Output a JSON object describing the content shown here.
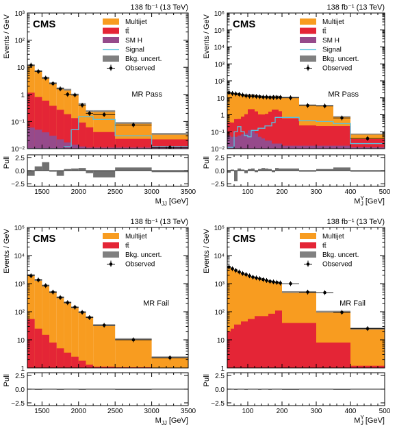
{
  "colors": {
    "multijet": "#f89c20",
    "ttbar": "#e42536",
    "smh": "#964a8b",
    "signal": "#5bc0de",
    "bkg_uncert": "#808080",
    "observed": "#000000"
  },
  "chart_data": [
    {
      "type": "histogram",
      "experiment": "CMS",
      "lumi": "138 fb⁻¹ (13 TeV)",
      "region": "MR Pass",
      "xlabel": "M_JJ [GeV]",
      "ylabel": "Events / GeV",
      "xlim": [
        1300,
        3500
      ],
      "ylim": [
        0.01,
        1000
      ],
      "yscale": "log",
      "xticks": [
        1500,
        2000,
        2500,
        3000,
        3500
      ],
      "yticks": [
        "10⁻²",
        "10⁻¹",
        "1",
        "10",
        "10²",
        "10³"
      ],
      "bins": [
        1300,
        1400,
        1500,
        1600,
        1700,
        1800,
        1900,
        2000,
        2100,
        2200,
        2500,
        3000,
        3500
      ],
      "legend": [
        "Multijet",
        "tt̄",
        "SM H",
        "Signal",
        "Bkg. uncert.",
        "Observed"
      ],
      "stack": {
        "smh": [
          0.06,
          0.05,
          0.04,
          0.03,
          0.022,
          0.017,
          0.014,
          0.012,
          0.011,
          0.011,
          0.011,
          0.011
        ],
        "ttbar": [
          1.1,
          0.75,
          0.55,
          0.35,
          0.25,
          0.17,
          0.12,
          0.08,
          0.05,
          0.03,
          0.012,
          0.011
        ],
        "multijet": [
          10.5,
          6.5,
          3.5,
          2.2,
          1.4,
          1.3,
          0.85,
          0.35,
          0.18,
          0.2,
          0.065,
          0.013
        ]
      },
      "signal": [
        0.001,
        0.001,
        0.001,
        0.001,
        0.001,
        0.012,
        0.05,
        0.15,
        0.15,
        0.12,
        0.03,
        0.012
      ],
      "observed": {
        "x": [
          1350,
          1450,
          1550,
          1650,
          1750,
          1850,
          1950,
          2050,
          2150,
          2350,
          2750,
          3250
        ],
        "y": [
          12,
          7,
          4,
          2.5,
          1.6,
          1.0,
          0.95,
          0.4,
          0.2,
          0.18,
          0.075,
          0.011
        ]
      },
      "pull": {
        "ylim": [
          -3,
          3
        ],
        "yticks": [
          "2.5",
          "0.0",
          "−2.5"
        ],
        "values": [
          -1.0,
          0.8,
          1.6,
          -0.2,
          -1.0,
          0.3,
          0.4,
          0.5,
          -0.5,
          -1.3,
          0.6,
          -0.3
        ]
      }
    },
    {
      "type": "histogram",
      "experiment": "CMS",
      "lumi": "138 fb⁻¹ (13 TeV)",
      "region": "MR Pass",
      "xlabel": "M_J^Y [GeV]",
      "ylabel": "Events / GeV",
      "xlim": [
        40,
        500
      ],
      "ylim": [
        0.01,
        1000000
      ],
      "yscale": "log",
      "xticks": [
        100,
        200,
        300,
        400,
        500
      ],
      "yticks": [
        "10⁻²",
        "10⁻¹",
        "1",
        "10",
        "10²",
        "10³",
        "10⁴",
        "10⁵",
        "10⁶"
      ],
      "bins": [
        40,
        50,
        60,
        70,
        80,
        90,
        100,
        110,
        120,
        130,
        140,
        150,
        160,
        170,
        180,
        190,
        200,
        250,
        300,
        350,
        400,
        500
      ],
      "legend": [
        "Multijet",
        "tt̄",
        "SM H",
        "Signal",
        "Bkg. uncert.",
        "Observed"
      ],
      "stack": {
        "smh": [
          0.06,
          0.05,
          0.05,
          0.06,
          0.07,
          0.08,
          0.12,
          0.13,
          0.08,
          0.05,
          0.04,
          0.03,
          0.03,
          0.02,
          0.02,
          0.02,
          0.015,
          0.015,
          0.015,
          0.015,
          0.012
        ],
        "ttbar": [
          0.3,
          0.3,
          0.5,
          0.5,
          0.7,
          1.0,
          2.0,
          2.0,
          1.5,
          1.0,
          1.0,
          1.1,
          1.5,
          2.0,
          2.0,
          1.6,
          0.6,
          0.22,
          0.2,
          0.2,
          0.025
        ],
        "multijet": [
          19,
          18,
          17,
          16,
          15,
          14,
          13,
          13,
          12,
          12,
          11,
          11,
          10.5,
          10.5,
          10.5,
          10.5,
          10,
          3.5,
          3.2,
          0.55,
          0.035
        ]
      },
      "signal": [
        0.012,
        0.012,
        0.1,
        0.2,
        0.1,
        0.06,
        0.05,
        0.12,
        0.12,
        0.16,
        0.16,
        0.22,
        0.22,
        0.35,
        0.7,
        0.7,
        0.7,
        0.45,
        0.4,
        0.3,
        0.02
      ],
      "observed": {
        "x": [
          45,
          55,
          65,
          75,
          85,
          95,
          105,
          115,
          125,
          135,
          145,
          155,
          165,
          175,
          185,
          195,
          225,
          275,
          325,
          375,
          450
        ],
        "y": [
          20,
          18,
          17,
          16,
          14.5,
          13,
          12.5,
          12.5,
          12,
          11.5,
          11,
          11,
          10.5,
          10.5,
          10.5,
          10.5,
          10,
          3.5,
          3.3,
          0.65,
          0.04
        ]
      },
      "pull": {
        "ylim": [
          -3,
          3
        ],
        "yticks": [
          "2.5",
          "0.0",
          "−2.5"
        ],
        "values": [
          -0.4,
          0.2,
          -2.0,
          0.4,
          0.2,
          -0.5,
          0.3,
          0.4,
          -0.3,
          0.3,
          0.5,
          0.4,
          0.3,
          -0.3,
          0.5,
          0.4,
          0.4,
          -0.2,
          0.3,
          0.6,
          -0.2
        ]
      }
    },
    {
      "type": "histogram",
      "experiment": "CMS",
      "lumi": "138 fb⁻¹ (13 TeV)",
      "region": "MR Fail",
      "xlabel": "M_JJ [GeV]",
      "ylabel": "Events / GeV",
      "xlim": [
        1300,
        3500
      ],
      "ylim": [
        1,
        100000
      ],
      "yscale": "log",
      "xticks": [
        1500,
        2000,
        2500,
        3000,
        3500
      ],
      "yticks": [
        "1",
        "10",
        "10²",
        "10³",
        "10⁴",
        "10⁵"
      ],
      "bins": [
        1300,
        1400,
        1500,
        1600,
        1700,
        1800,
        1900,
        2000,
        2100,
        2200,
        2500,
        3000,
        3500
      ],
      "legend": [
        "Multijet",
        "tt̄",
        "Bkg. uncert.",
        "Observed"
      ],
      "stack": {
        "ttbar": [
          55,
          25,
          15,
          8,
          5,
          3.5,
          2.5,
          1.8,
          1.3,
          1.1,
          1.05,
          1.02
        ],
        "multijet": [
          1945,
          1325,
          835,
          492,
          320,
          210,
          140,
          95,
          63,
          32,
          9.5,
          1.35
        ]
      },
      "observed": {
        "x": [
          1350,
          1450,
          1550,
          1650,
          1750,
          1850,
          1950,
          2050,
          2150,
          2350,
          2750,
          3250
        ],
        "y": [
          1900,
          1350,
          850,
          500,
          320,
          210,
          145,
          95,
          62,
          33,
          10,
          2.3
        ]
      },
      "pull": {
        "ylim": [
          -3,
          3
        ],
        "yticks": [
          "2.5",
          "0.0",
          "−2.5"
        ],
        "values": [
          0.05,
          -0.05,
          0.05,
          0.05,
          -0.05,
          0.05,
          0.05,
          -0.05,
          0.05,
          0.05,
          -0.05,
          0.05
        ]
      }
    },
    {
      "type": "histogram",
      "experiment": "CMS",
      "lumi": "138 fb⁻¹ (13 TeV)",
      "region": "MR Fail",
      "xlabel": "M_J^Y [GeV]",
      "ylabel": "Events / GeV",
      "xlim": [
        40,
        500
      ],
      "ylim": [
        1,
        100000
      ],
      "yscale": "log",
      "xticks": [
        100,
        200,
        300,
        400,
        500
      ],
      "yticks": [
        "1",
        "10",
        "10²",
        "10³",
        "10⁴",
        "10⁵"
      ],
      "bins": [
        40,
        50,
        60,
        70,
        80,
        90,
        100,
        110,
        120,
        130,
        140,
        150,
        160,
        170,
        180,
        190,
        200,
        250,
        300,
        350,
        400,
        500
      ],
      "legend": [
        "Multijet",
        "tt̄",
        "Bkg. uncert.",
        "Observed"
      ],
      "stack": {
        "ttbar": [
          20,
          25,
          35,
          35,
          45,
          45,
          55,
          55,
          70,
          70,
          70,
          70,
          85,
          85,
          110,
          110,
          40,
          40,
          8,
          8,
          1.2
        ],
        "multijet": [
          3880,
          3375,
          2915,
          2565,
          2255,
          2055,
          1845,
          1645,
          1530,
          1430,
          1330,
          1230,
          1115,
          1065,
          990,
          940,
          460,
          460,
          92,
          92,
          23.8
        ]
      },
      "observed": {
        "x": [
          45,
          55,
          65,
          75,
          85,
          95,
          105,
          115,
          125,
          135,
          145,
          155,
          165,
          175,
          185,
          195,
          225,
          275,
          325,
          375,
          450
        ],
        "y": [
          3900,
          3400,
          2950,
          2600,
          2300,
          2100,
          1900,
          1700,
          1600,
          1500,
          1400,
          1300,
          1200,
          1150,
          1100,
          1050,
          1000,
          500,
          480,
          95,
          25
        ]
      },
      "pull": {
        "ylim": [
          -3,
          3
        ],
        "yticks": [
          "2.5",
          "0.0",
          "−2.5"
        ],
        "values": [
          0.05,
          0.05,
          -0.05,
          0.05,
          0.05,
          -0.05,
          0.05,
          0.05,
          0.05,
          -0.05,
          0.05,
          0.05,
          -0.05,
          0.05,
          0.05,
          0.05,
          -0.05,
          0.05,
          0.05,
          -0.05,
          0.05
        ]
      }
    }
  ]
}
